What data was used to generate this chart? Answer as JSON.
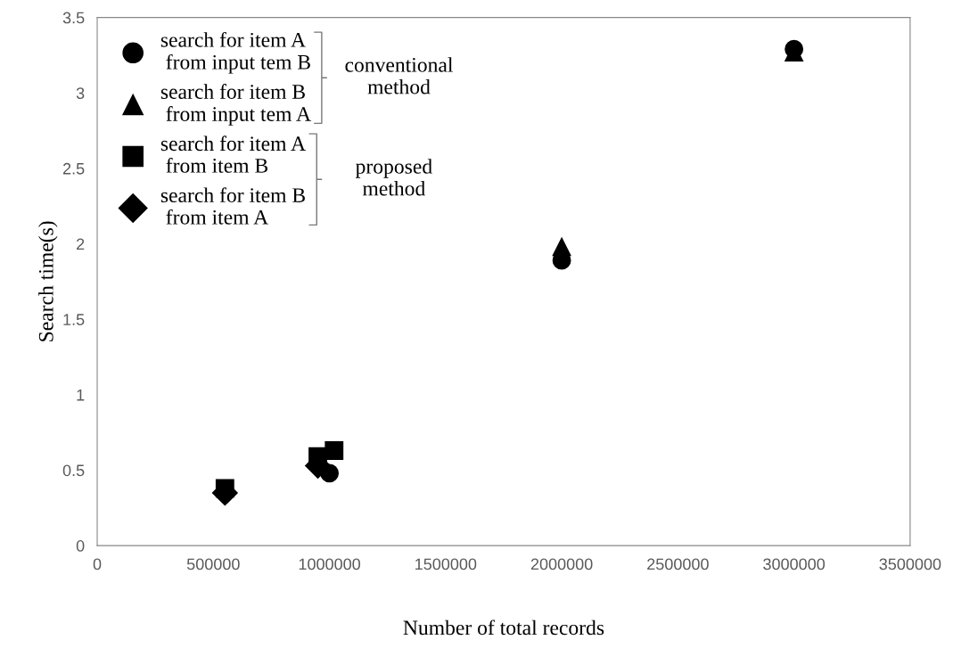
{
  "chart_data": {
    "type": "scatter",
    "xlabel": "Number of total records",
    "ylabel": "Search time(s)",
    "xlim": [
      0,
      3500000
    ],
    "xticks": [
      0,
      500000,
      1000000,
      1500000,
      2000000,
      2500000,
      3000000,
      3500000
    ],
    "ylim": [
      0,
      3.5
    ],
    "yticks": [
      0,
      0.5,
      1,
      1.5,
      2,
      2.5,
      3,
      3.5
    ],
    "grid": false,
    "legend": "top left",
    "annotations": [
      "conventional\nmethod",
      "proposed\nmethod"
    ],
    "series": [
      {
        "name": "search for item A\n from input tem B",
        "color": "#000000",
        "marker": "circle",
        "x": [
          1000000,
          2000000,
          3000000
        ],
        "values": [
          0.48,
          1.89,
          3.29
        ]
      },
      {
        "name": "search for item B\n from input tem A",
        "color": "#000000",
        "marker": "triangle",
        "x": [
          2000000,
          3000000
        ],
        "values": [
          1.98,
          3.27
        ]
      },
      {
        "name": "search for item A\n from item B",
        "color": "#000000",
        "marker": "square",
        "x": [
          550000,
          950000,
          1020000
        ],
        "values": [
          0.38,
          0.59,
          0.63
        ]
      },
      {
        "name": "search for item B\n from item A",
        "color": "#000000",
        "marker": "diamond",
        "x": [
          550000,
          950000
        ],
        "values": [
          0.35,
          0.53
        ]
      }
    ]
  }
}
